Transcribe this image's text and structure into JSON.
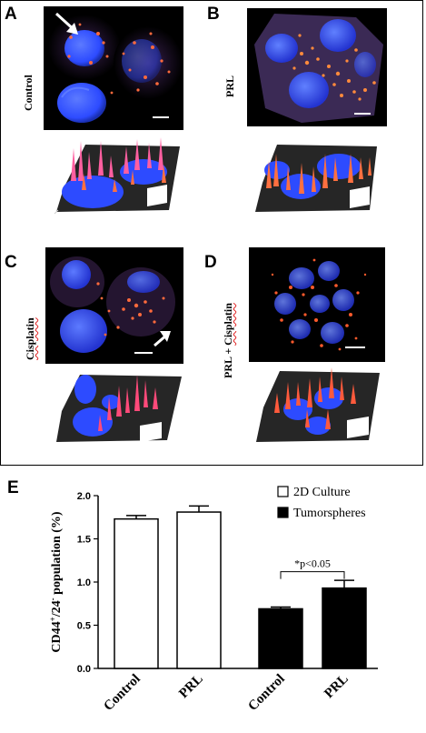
{
  "figure": {
    "panels": [
      {
        "letter": "A",
        "condition": "Control"
      },
      {
        "letter": "B",
        "condition": "PRL"
      },
      {
        "letter": "C",
        "condition": "Cisplatin"
      },
      {
        "letter": "D",
        "condition_prefix": "PRL + ",
        "condition_drug": "Cisplatin"
      }
    ],
    "chart_letter": "E"
  },
  "colors": {
    "nucleus": "#2d4bff",
    "vesicle": "#ff6a3c",
    "bar_2d": "#ffffff",
    "bar_tumorspheres": "#000000"
  },
  "chart_data": {
    "type": "bar",
    "title": "",
    "xlabel": "",
    "ylabel": "CD44+/24- population (%)",
    "ylabel_parts": {
      "base": "CD44",
      "sup1": "+",
      "mid": "/24",
      "sup2": "-",
      "rest": " population (%)"
    },
    "ylim": [
      0,
      2.0
    ],
    "yticks": [
      "0.0",
      "0.5",
      "1.0",
      "1.5",
      "2.0"
    ],
    "categories": [
      "Control",
      "PRL",
      "Control",
      "PRL"
    ],
    "values": [
      1.73,
      1.81,
      0.69,
      0.93
    ],
    "errors": [
      0.04,
      0.07,
      0.02,
      0.09
    ],
    "groups": [
      "2D Culture",
      "2D Culture",
      "Tumorspheres",
      "Tumorspheres"
    ],
    "legend": [
      {
        "name": "2D Culture",
        "fill": "#ffffff"
      },
      {
        "name": "Tumorspheres",
        "fill": "#000000"
      }
    ],
    "legend_position": "top-right",
    "grid": false,
    "annotation": "*p<0.05"
  }
}
